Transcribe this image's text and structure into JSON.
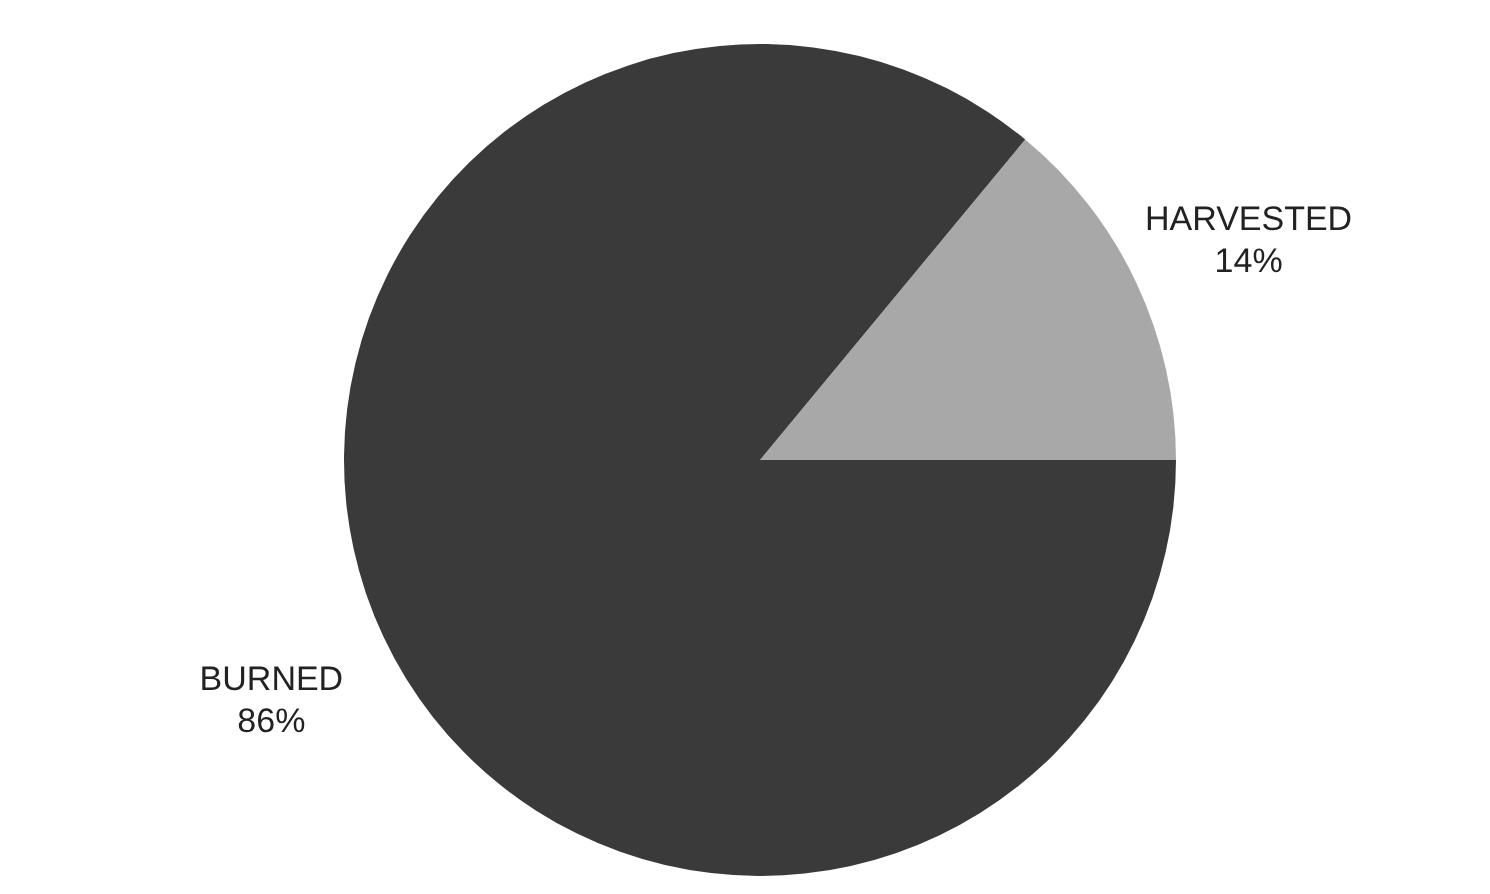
{
  "chart_data": {
    "type": "pie",
    "categories": [
      "HARVESTED",
      "BURNED"
    ],
    "values": [
      14,
      86
    ],
    "value_labels": [
      "14%",
      "86%"
    ],
    "colors": [
      "#a8a8a8",
      "#3a3a3a"
    ]
  }
}
